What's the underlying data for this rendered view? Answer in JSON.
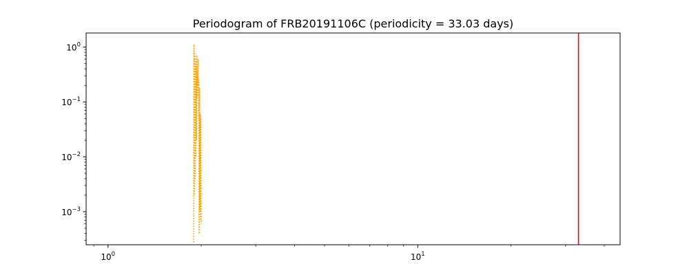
{
  "chart_data": {
    "type": "line",
    "title": "Periodogram of FRB20191106C (periodicity = 33.03 days)",
    "xlabel": "",
    "ylabel": "",
    "xscale": "log",
    "yscale": "log",
    "xlim": [
      0.85,
      45
    ],
    "ylim": [
      0.00025,
      1.8
    ],
    "grid": false,
    "x_ticks": [
      {
        "value": 1,
        "base": "10",
        "exp": "0"
      },
      {
        "value": 10,
        "base": "10",
        "exp": "1"
      }
    ],
    "y_ticks": [
      {
        "value": 1,
        "base": "10",
        "exp": "0"
      },
      {
        "value": 0.1,
        "base": "10",
        "exp": "−1"
      },
      {
        "value": 0.01,
        "base": "10",
        "exp": "−2"
      },
      {
        "value": 0.001,
        "base": "10",
        "exp": "−3"
      }
    ],
    "series": [
      {
        "color": "#ffa500",
        "line_style": "dotted",
        "points": [
          [
            1.89,
            0.00028
          ],
          [
            1.895,
            1.1
          ],
          [
            1.9,
            0.002
          ],
          [
            1.905,
            0.75
          ],
          [
            1.91,
            0.004
          ],
          [
            1.915,
            0.6
          ],
          [
            1.92,
            0.01
          ],
          [
            1.925,
            0.45
          ],
          [
            1.93,
            0.02
          ],
          [
            1.935,
            0.7
          ],
          [
            1.94,
            0.12
          ],
          [
            1.945,
            0.35
          ],
          [
            1.95,
            0.2
          ],
          [
            1.955,
            0.6
          ],
          [
            1.96,
            0.05
          ],
          [
            1.965,
            0.25
          ],
          [
            1.97,
            0.0004
          ],
          [
            1.975,
            0.18
          ],
          [
            1.98,
            0.001
          ],
          [
            1.985,
            0.06
          ],
          [
            1.99,
            0.0007
          ],
          [
            1.995,
            0.05
          ],
          [
            2.0,
            0.0006
          ]
        ]
      }
    ],
    "vlines": [
      {
        "x": 33.03,
        "color": "#ff0000",
        "line_style": "solid"
      }
    ]
  }
}
